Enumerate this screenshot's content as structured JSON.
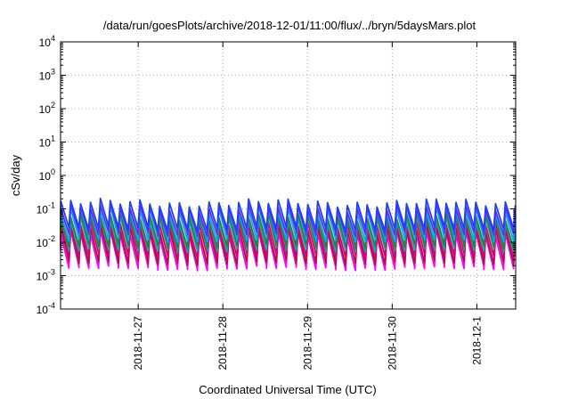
{
  "chart_data": {
    "type": "line",
    "title": "/data/run/goesPlots/archive/2018-12-01/11:00/flux/../bryn/5daysMars.plot",
    "xlabel": "Coordinated Universal Time (UTC)",
    "ylabel": "cSv/day",
    "yscale": "log",
    "ylim": [
      0.0001,
      10000
    ],
    "y_ticks": [
      {
        "base": "10",
        "exp": "-4",
        "value": 0.0001
      },
      {
        "base": "10",
        "exp": "-3",
        "value": 0.001
      },
      {
        "base": "10",
        "exp": "-2",
        "value": 0.01
      },
      {
        "base": "10",
        "exp": "-1",
        "value": 0.1
      },
      {
        "base": "10",
        "exp": "0",
        "value": 1
      },
      {
        "base": "10",
        "exp": "1",
        "value": 10
      },
      {
        "base": "10",
        "exp": "2",
        "value": 100
      },
      {
        "base": "10",
        "exp": "3",
        "value": 1000
      },
      {
        "base": "10",
        "exp": "4",
        "value": 10000
      }
    ],
    "x_start": "2018-11-26 02:00",
    "x_end": "2018-12-01 11:00",
    "x_ticks": [
      "2018-11-27",
      "2018-11-28",
      "2018-11-29",
      "2018-11-30",
      "2018-12-1"
    ],
    "grid": true,
    "legend": "none",
    "sawtooth_period_hours": 2.8,
    "series": [
      {
        "color": "#ff00ff",
        "peak": 0.018,
        "trough": 0.0017
      },
      {
        "color": "#9b1b3a",
        "peak": 0.025,
        "trough": 0.0025
      },
      {
        "color": "#e0006a",
        "peak": 0.035,
        "trough": 0.004
      },
      {
        "color": "#00b0b0",
        "peak": 0.05,
        "trough": 0.006
      },
      {
        "color": "#2e7d32",
        "peak": 0.06,
        "trough": 0.008
      },
      {
        "color": "#00aaff",
        "peak": 0.09,
        "trough": 0.012
      },
      {
        "color": "#6b2fd6",
        "peak": 0.11,
        "trough": 0.018
      },
      {
        "color": "#1f3fff",
        "peak": 0.15,
        "trough": 0.025
      }
    ]
  }
}
